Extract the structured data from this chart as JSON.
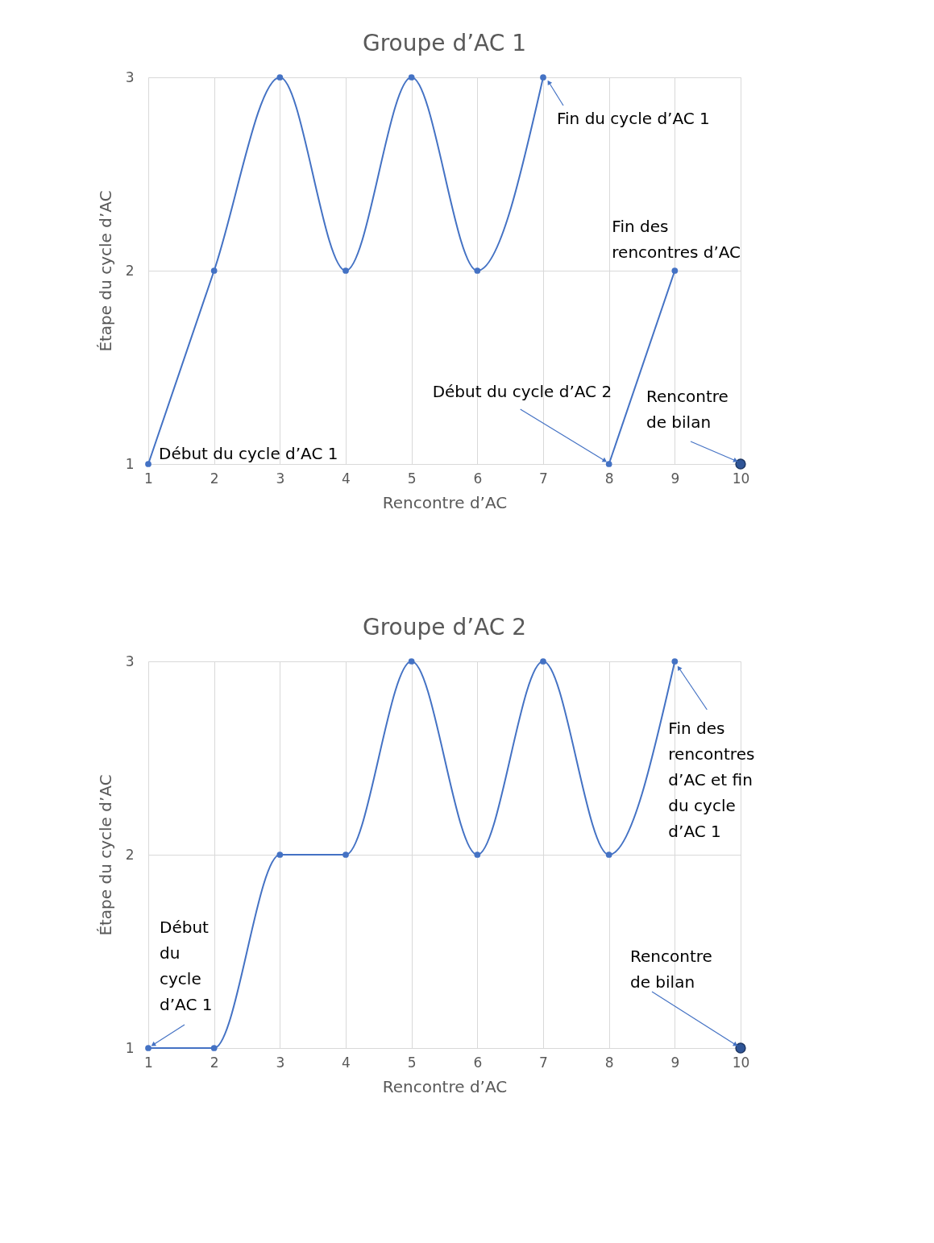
{
  "chart_data": [
    {
      "type": "line",
      "title": "Groupe d’AC 1",
      "xlabel": "Rencontre d’AC",
      "ylabel": "Étape du cycle d’AC",
      "xlim": [
        1,
        10
      ],
      "xticks": [
        1,
        2,
        3,
        4,
        5,
        6,
        7,
        8,
        9,
        10
      ],
      "ylim": [
        1,
        3
      ],
      "yticks": [
        1,
        2,
        3
      ],
      "grid": true,
      "marker": "circle",
      "series": [
        {
          "color": "#4472c4",
          "x": [
            1,
            2,
            3,
            4,
            5,
            6,
            7
          ],
          "values": [
            1,
            2,
            3,
            2,
            3,
            2,
            3
          ]
        },
        {
          "color": "#4472c4",
          "x": [
            8,
            9
          ],
          "values": [
            1,
            2
          ]
        },
        {
          "type": "scatter",
          "color": "#2f5597",
          "x": [
            10
          ],
          "values": [
            1
          ]
        }
      ],
      "annotations": [
        {
          "text": "Début du cycle d’AC 1",
          "x": 1,
          "y": 1
        },
        {
          "text": "Fin du cycle d’AC 1",
          "x": 7,
          "y": 3
        },
        {
          "text": "Fin des\nrencontres d’AC",
          "x": 9,
          "y": 2
        },
        {
          "text": "Début du cycle d’AC 2",
          "x": 8,
          "y": 1
        },
        {
          "text": "Rencontre\nde bilan",
          "x": 10,
          "y": 1
        }
      ]
    },
    {
      "type": "line",
      "title": "Groupe d’AC 2",
      "xlabel": "Rencontre d’AC",
      "ylabel": "Étape du cycle d’AC",
      "xlim": [
        1,
        10
      ],
      "xticks": [
        1,
        2,
        3,
        4,
        5,
        6,
        7,
        8,
        9,
        10
      ],
      "ylim": [
        1,
        3
      ],
      "yticks": [
        1,
        2,
        3
      ],
      "grid": true,
      "marker": "circle",
      "series": [
        {
          "color": "#4472c4",
          "x": [
            1,
            2,
            3,
            4,
            5,
            6,
            7,
            8,
            9
          ],
          "values": [
            1,
            1,
            2,
            2,
            3,
            2,
            3,
            2,
            3
          ]
        },
        {
          "type": "scatter",
          "color": "#2f5597",
          "x": [
            10
          ],
          "values": [
            1
          ]
        }
      ],
      "annotations": [
        {
          "text": "Début\ndu\ncycle\nd’AC 1",
          "x": 1,
          "y": 1
        },
        {
          "text": "Fin des\nrencontres\nd’AC et fin\ndu cycle\nd’AC 1",
          "x": 9,
          "y": 3
        },
        {
          "text": "Rencontre\nde bilan",
          "x": 10,
          "y": 1
        }
      ]
    }
  ]
}
